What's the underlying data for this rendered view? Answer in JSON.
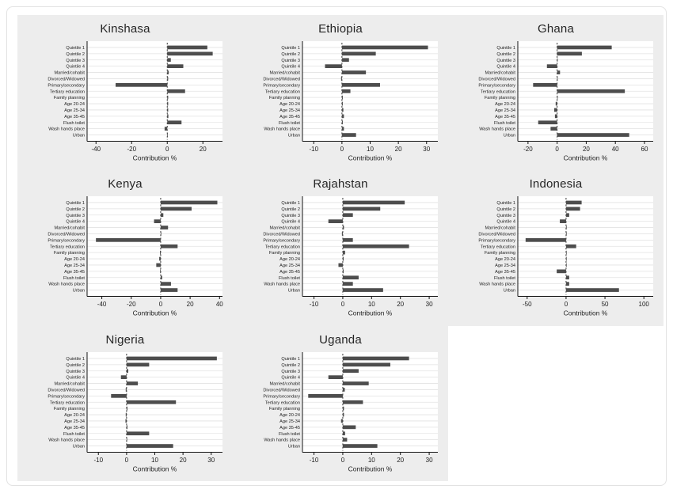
{
  "figure": {
    "axis_label": "Contribution %",
    "colors": {
      "bar": "#4d4d4d",
      "panel_bg": "#ededed",
      "plot_bg": "#ffffff",
      "grid": "#e2e2e2",
      "axis": "#141414",
      "zero_line": "#3a3a3a",
      "text": "#1c1c1c"
    }
  },
  "chart_data": [
    {
      "type": "bar",
      "orientation": "horizontal",
      "title": "Kinshasa",
      "xlabel": "Contribution %",
      "xlim": [
        -45,
        31
      ],
      "xticks": [
        -40,
        -20,
        0,
        20
      ],
      "grid": true,
      "categories": [
        "Quintile 1",
        "Quintile 2",
        "Quintile 3",
        "Quintile 4",
        "Married/cohabit",
        "Divorced/Widowed",
        "Primary/secondary",
        "Tertiary education",
        "Family planning",
        "Age 20-24",
        "Age 25-34",
        "Age 35-45",
        "Flush toilet",
        "Wash hands place",
        "Urban"
      ],
      "values": [
        22.5,
        25.5,
        2,
        9,
        0.8,
        0.5,
        -29,
        10,
        0.5,
        0.5,
        0.5,
        0.6,
        8,
        -1.5,
        0.2
      ]
    },
    {
      "type": "bar",
      "orientation": "horizontal",
      "title": "Ethiopia",
      "xlabel": "Contribution %",
      "xlim": [
        -14,
        34
      ],
      "xticks": [
        -10,
        0,
        10,
        20,
        30
      ],
      "grid": true,
      "categories": [
        "Quintile 1",
        "Quintile 2",
        "Quintile 3",
        "Quintile 4",
        "Married/cohabit",
        "Divorced/Widowed",
        "Primary/secondary",
        "Tertiary education",
        "Family planning",
        "Age 20-24",
        "Age 25-34",
        "Age 35-45",
        "Flush toilet",
        "Wash hands place",
        "Urban"
      ],
      "values": [
        30.5,
        12,
        2.5,
        -6,
        8.5,
        -0.3,
        13.5,
        3,
        0.3,
        0.3,
        0.5,
        0.7,
        0.3,
        0.7,
        5
      ]
    },
    {
      "type": "bar",
      "orientation": "horizontal",
      "title": "Ghana",
      "xlabel": "Contribution %",
      "xlim": [
        -27,
        66
      ],
      "xticks": [
        -20,
        0,
        20,
        40,
        60
      ],
      "grid": true,
      "categories": [
        "Quintile 1",
        "Quintile 2",
        "Quintile 3",
        "Quintile 4",
        "Married/cohabit",
        "Divorced/Widowed",
        "Primary/secondary",
        "Tertiary education",
        "Family planning",
        "Age 20-24",
        "Age 25-34",
        "Age 35-45",
        "Flush toilet",
        "Wash hands place",
        "Urban"
      ],
      "values": [
        37.5,
        17,
        0.3,
        -7,
        2,
        0.3,
        -16.5,
        46.5,
        0.4,
        -1,
        -2,
        -1.5,
        -13,
        -4.5,
        49.5
      ]
    },
    {
      "type": "bar",
      "orientation": "horizontal",
      "title": "Kenya",
      "xlabel": "Contribution %",
      "xlim": [
        -50,
        42
      ],
      "xticks": [
        -40,
        -20,
        0,
        20,
        40
      ],
      "grid": true,
      "categories": [
        "Quintile 1",
        "Quintile 2",
        "Quintile 3",
        "Quintile 4",
        "Married/cohabit",
        "Divorced/Widowed",
        "Primary/secondary",
        "Tertiary education",
        "Family planning",
        "Age 20-24",
        "Age 25-34",
        "Age 35-45",
        "Flush toilet",
        "Wash hands place",
        "Urban"
      ],
      "values": [
        38.5,
        21,
        1.8,
        -4.5,
        5,
        0.4,
        -44,
        11.5,
        -0.5,
        -1,
        -3,
        -0.4,
        1,
        7,
        11.5
      ]
    },
    {
      "type": "bar",
      "orientation": "horizontal",
      "title": "Rajahstan",
      "xlabel": "Contribution %",
      "xlim": [
        -14,
        33
      ],
      "xticks": [
        -10,
        0,
        10,
        20,
        30
      ],
      "grid": true,
      "categories": [
        "Quintile 1",
        "Quintile 2",
        "Quintile 3",
        "Quintile 4",
        "Married/cohabit",
        "Divorced/Widowed",
        "Primary/secondary",
        "Tertiary education",
        "Family planning",
        "Age 20-24",
        "Age 25-34",
        "Age 35-45",
        "Flush toilet",
        "Wash hands place",
        "Urban"
      ],
      "values": [
        21.5,
        13,
        3.5,
        -5,
        0.4,
        -0.3,
        3.5,
        23,
        0.8,
        0.3,
        -1.5,
        0.3,
        5.5,
        3.5,
        14
      ]
    },
    {
      "type": "bar",
      "orientation": "horizontal",
      "title": "Indonesia",
      "xlabel": "Contribution %",
      "xlim": [
        -62,
        112
      ],
      "xticks": [
        -50,
        0,
        50,
        100
      ],
      "grid": true,
      "categories": [
        "Quintile 1",
        "Quintile 2",
        "Quintile 3",
        "Quintile 4",
        "Married/cohabit",
        "Divorced/Widowed",
        "Primary/secondary",
        "Tertiary education",
        "Family planning",
        "Age 20-24",
        "Age 25-34",
        "Age 35-45",
        "Flush toilet",
        "Wash hands place",
        "Urban"
      ],
      "values": [
        20,
        18,
        4,
        -8,
        0.8,
        0.8,
        -52,
        13,
        0.8,
        0.8,
        0.8,
        -12,
        4,
        4,
        68
      ]
    },
    {
      "type": "bar",
      "orientation": "horizontal",
      "title": "Nigeria",
      "xlabel": "Contribution %",
      "xlim": [
        -14,
        34
      ],
      "xticks": [
        -10,
        0,
        10,
        20,
        30
      ],
      "grid": true,
      "categories": [
        "Quintile 1",
        "Quintile 2",
        "Quintile 3",
        "Quintile 4",
        "Married/cohabit",
        "Divorced/Widowed",
        "Primary/secondary",
        "Tertiary education",
        "Family planning",
        "Age 20-24",
        "Age 25-34",
        "Age 35-45",
        "Flush toilet",
        "Wash hands place",
        "Urban"
      ],
      "values": [
        32,
        8,
        0.6,
        -2,
        4,
        -0.3,
        -5.5,
        17.5,
        0.3,
        -0.3,
        -0.4,
        0.3,
        8,
        0.2,
        16.5
      ]
    },
    {
      "type": "bar",
      "orientation": "horizontal",
      "title": "Uganda",
      "xlabel": "Contribution %",
      "xlim": [
        -14,
        33
      ],
      "xticks": [
        -10,
        0,
        10,
        20,
        30
      ],
      "grid": true,
      "categories": [
        "Quintile 1",
        "Quintile 2",
        "Quintile 3",
        "Quintile 4",
        "Married/cohabit",
        "Divorced/Widowed",
        "Primary/secondary",
        "Tertiary education",
        "Family planning",
        "Age 20-24",
        "Age 25-34",
        "Age 35-45",
        "Flush toilet",
        "Wash hands place",
        "Urban"
      ],
      "values": [
        23,
        16.5,
        5.5,
        -5,
        9,
        0.7,
        -12,
        7,
        0.4,
        0.4,
        -0.6,
        4.5,
        0.8,
        1.5,
        12
      ]
    }
  ]
}
